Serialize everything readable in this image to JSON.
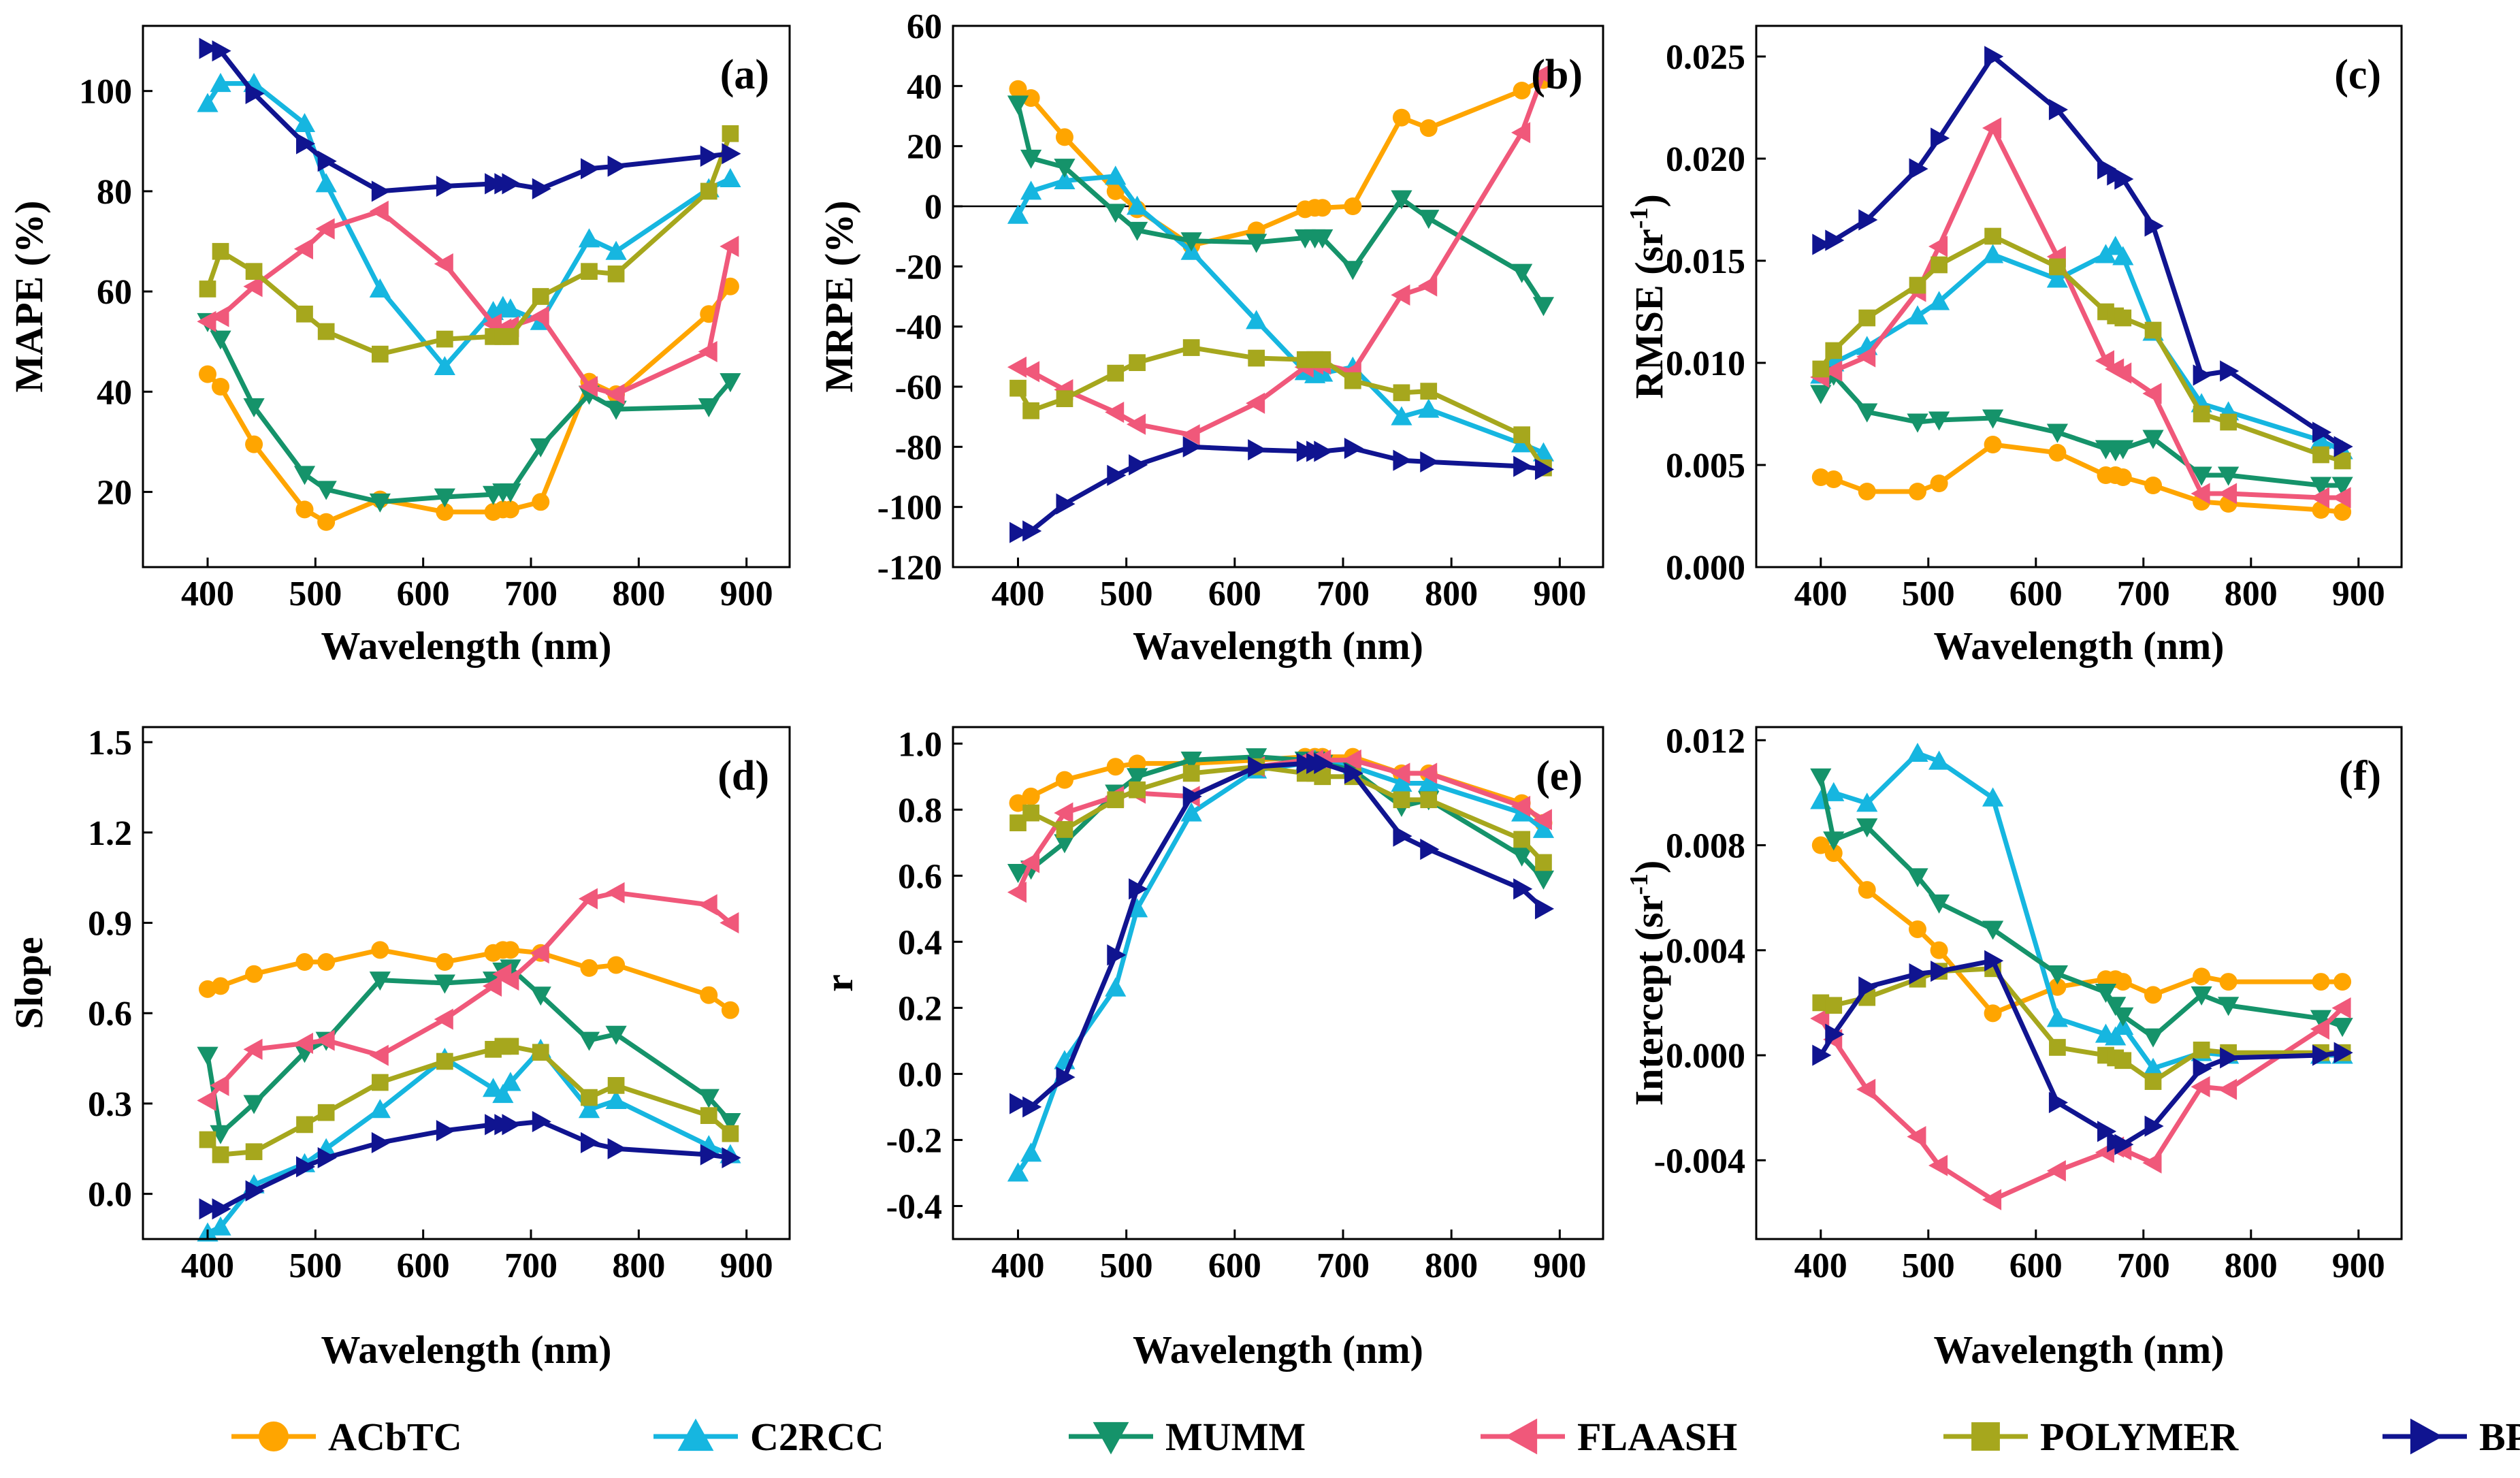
{
  "chart_data": [
    {
      "type": "line",
      "panel_label": "(a)",
      "ylabel": "MAPE (%)",
      "xlabel": "Wavelength (nm)",
      "xlim": [
        340,
        940
      ],
      "ylim": [
        5,
        113
      ],
      "xticks": [
        400,
        500,
        600,
        700,
        800,
        900
      ],
      "yticks": [
        20,
        40,
        60,
        80,
        100
      ],
      "xtick_labels": [
        "400",
        "500",
        "600",
        "700",
        "800",
        "900"
      ],
      "ytick_labels": [
        "20",
        "40",
        "60",
        "80",
        "100"
      ],
      "x": [
        400,
        412,
        443,
        490,
        510,
        560,
        620,
        665,
        674,
        681,
        709,
        754,
        779,
        865,
        885
      ],
      "series": [
        {
          "name": "ACbTC",
          "values": [
            43.5,
            41,
            29.5,
            16.5,
            14,
            18.5,
            16,
            16,
            16.5,
            16.5,
            18,
            42,
            39.5,
            55.5,
            61
          ]
        },
        {
          "name": "C2RCC",
          "values": [
            97.5,
            101.5,
            101.5,
            93.5,
            81.5,
            60.5,
            45,
            56,
            57,
            56.5,
            54,
            70.5,
            68,
            80.5,
            82.5
          ]
        },
        {
          "name": "MUMM",
          "values": [
            54,
            50.5,
            37,
            23.5,
            20.5,
            18,
            19,
            19.5,
            20,
            20,
            29,
            39.5,
            36.5,
            37,
            42
          ]
        },
        {
          "name": "FLAASH",
          "values": [
            54,
            55,
            61,
            68.5,
            72.5,
            76,
            65.5,
            53.5,
            52.5,
            53,
            55,
            41,
            39.5,
            48,
            69
          ]
        },
        {
          "name": "POLYMER",
          "values": [
            60.5,
            68,
            64,
            55.5,
            52,
            47.5,
            50.5,
            51,
            51,
            51,
            59,
            64,
            63.5,
            80,
            91.5
          ]
        },
        {
          "name": "BPAC",
          "values": [
            108.5,
            108,
            99.5,
            89.5,
            86,
            80,
            81,
            81.5,
            81.5,
            81.5,
            80.5,
            84.5,
            85,
            87,
            87.5
          ]
        }
      ]
    },
    {
      "type": "line",
      "panel_label": "(b)",
      "ylabel": "MRPE (%)",
      "xlabel": "Wavelength (nm)",
      "xlim": [
        340,
        940
      ],
      "ylim": [
        -120,
        60
      ],
      "reference_line": 0,
      "xticks": [
        400,
        500,
        600,
        700,
        800,
        900
      ],
      "yticks": [
        -120,
        -100,
        -80,
        -60,
        -40,
        -20,
        0,
        20,
        40,
        60
      ],
      "xtick_labels": [
        "400",
        "500",
        "600",
        "700",
        "800",
        "900"
      ],
      "ytick_labels": [
        "-120",
        "-100",
        "-80",
        "-60",
        "-40",
        "-20",
        "0",
        "20",
        "40",
        "60"
      ],
      "x": [
        400,
        412,
        443,
        490,
        510,
        560,
        620,
        665,
        674,
        681,
        709,
        754,
        779,
        865,
        885
      ],
      "series": [
        {
          "name": "ACbTC",
          "values": [
            39,
            36,
            23,
            5,
            -1,
            -13,
            -8,
            -1,
            -0.5,
            -0.5,
            0,
            29.5,
            26,
            38.5,
            42
          ]
        },
        {
          "name": "C2RCC",
          "values": [
            -3,
            5,
            8.5,
            10,
            0,
            -15,
            -38,
            -55,
            -56,
            -55.5,
            -53.5,
            -70,
            -67.5,
            -79,
            -82
          ]
        },
        {
          "name": "MUMM",
          "values": [
            34,
            16,
            13,
            -2,
            -8,
            -11.5,
            -12,
            -10.5,
            -10.5,
            -10.5,
            -21,
            2.5,
            -4,
            -22,
            -33
          ]
        },
        {
          "name": "FLAASH",
          "values": [
            -53.5,
            -55,
            -61,
            -68.5,
            -72.5,
            -76,
            -65.5,
            -53.5,
            -52.5,
            -52.5,
            -55,
            -29.5,
            -26.5,
            24.5,
            44
          ]
        },
        {
          "name": "POLYMER",
          "values": [
            -60.5,
            -68,
            -64,
            -55.5,
            -52,
            -47,
            -50.5,
            -51,
            -51,
            -51,
            -58,
            -62,
            -61.5,
            -76,
            -87
          ]
        },
        {
          "name": "BPAC",
          "values": [
            -108.5,
            -108,
            -99,
            -89.5,
            -86,
            -80,
            -81,
            -81.5,
            -81.5,
            -81.5,
            -80.5,
            -84.5,
            -85,
            -86.5,
            -87.5
          ]
        }
      ]
    },
    {
      "type": "line",
      "panel_label": "(c)",
      "ylabel_main": "RMSE (sr",
      "ylabel_sup": "-1",
      "ylabel_end": ")",
      "xlabel": "Wavelength (nm)",
      "xlim": [
        340,
        940
      ],
      "ylim": [
        0,
        0.0265
      ],
      "xticks": [
        400,
        500,
        600,
        700,
        800,
        900
      ],
      "yticks": [
        0,
        0.005,
        0.01,
        0.015,
        0.02,
        0.025
      ],
      "xtick_labels": [
        "400",
        "500",
        "600",
        "700",
        "800",
        "900"
      ],
      "ytick_labels": [
        "0.000",
        "0.005",
        "0.010",
        "0.015",
        "0.020",
        "0.025"
      ],
      "x": [
        400,
        412,
        443,
        490,
        510,
        560,
        620,
        665,
        674,
        681,
        709,
        754,
        779,
        865,
        885
      ],
      "series": [
        {
          "name": "ACbTC",
          "values": [
            0.0044,
            0.0043,
            0.0037,
            0.0037,
            0.0041,
            0.006,
            0.0056,
            0.0045,
            0.0045,
            0.0044,
            0.004,
            0.0032,
            0.0031,
            0.0028,
            0.0027
          ]
        },
        {
          "name": "C2RCC",
          "values": [
            0.0094,
            0.01,
            0.0108,
            0.0123,
            0.013,
            0.0153,
            0.0141,
            0.0153,
            0.0157,
            0.0152,
            0.0115,
            0.008,
            0.0076,
            0.0062,
            0.0057
          ]
        },
        {
          "name": "MUMM",
          "values": [
            0.0085,
            0.0094,
            0.0076,
            0.0071,
            0.0072,
            0.0073,
            0.0066,
            0.0058,
            0.0057,
            0.0058,
            0.0063,
            0.0045,
            0.0045,
            0.004,
            0.004
          ]
        },
        {
          "name": "FLAASH",
          "values": [
            0.0093,
            0.0096,
            0.0103,
            0.0135,
            0.0157,
            0.0215,
            0.0152,
            0.0101,
            0.0097,
            0.0095,
            0.0085,
            0.0036,
            0.0036,
            0.0034,
            0.0034
          ]
        },
        {
          "name": "POLYMER",
          "values": [
            0.0097,
            0.0106,
            0.0122,
            0.0138,
            0.0148,
            0.0162,
            0.0147,
            0.0125,
            0.0123,
            0.0122,
            0.0116,
            0.0075,
            0.0071,
            0.0055,
            0.0052
          ]
        },
        {
          "name": "BPAC",
          "values": [
            0.0158,
            0.016,
            0.017,
            0.0195,
            0.021,
            0.025,
            0.0224,
            0.0195,
            0.0192,
            0.019,
            0.0167,
            0.0094,
            0.0096,
            0.0066,
            0.0059
          ]
        }
      ]
    },
    {
      "type": "line",
      "panel_label": "(d)",
      "ylabel": "Slope",
      "xlabel": "Wavelength (nm)",
      "xlim": [
        340,
        940
      ],
      "ylim": [
        -0.15,
        1.55
      ],
      "xticks": [
        400,
        500,
        600,
        700,
        800,
        900
      ],
      "yticks": [
        0,
        0.3,
        0.6,
        0.9,
        1.2,
        1.5
      ],
      "xtick_labels": [
        "400",
        "500",
        "600",
        "700",
        "800",
        "900"
      ],
      "ytick_labels": [
        "0.0",
        "0.3",
        "0.6",
        "0.9",
        "1.2",
        "1.5"
      ],
      "x": [
        400,
        412,
        443,
        490,
        510,
        560,
        620,
        665,
        674,
        681,
        709,
        754,
        779,
        865,
        885
      ],
      "series": [
        {
          "name": "ACbTC",
          "values": [
            0.68,
            0.69,
            0.73,
            0.77,
            0.77,
            0.81,
            0.77,
            0.8,
            0.81,
            0.81,
            0.8,
            0.75,
            0.76,
            0.66,
            0.61
          ]
        },
        {
          "name": "C2RCC",
          "values": [
            -0.13,
            -0.11,
            0.03,
            0.1,
            0.15,
            0.28,
            0.45,
            0.35,
            0.33,
            0.37,
            0.48,
            0.28,
            0.31,
            0.16,
            0.13
          ]
        },
        {
          "name": "MUMM",
          "values": [
            0.46,
            0.2,
            0.3,
            0.47,
            0.51,
            0.71,
            0.7,
            0.71,
            0.74,
            0.75,
            0.66,
            0.51,
            0.53,
            0.32,
            0.24
          ]
        },
        {
          "name": "FLAASH",
          "values": [
            0.31,
            0.36,
            0.48,
            0.5,
            0.51,
            0.46,
            0.58,
            0.69,
            0.73,
            0.71,
            0.8,
            0.98,
            1.0,
            0.96,
            0.9
          ]
        },
        {
          "name": "POLYMER",
          "values": [
            0.18,
            0.13,
            0.14,
            0.23,
            0.27,
            0.37,
            0.44,
            0.48,
            0.49,
            0.49,
            0.47,
            0.32,
            0.36,
            0.26,
            0.2
          ]
        },
        {
          "name": "BPAC",
          "values": [
            -0.05,
            -0.05,
            0.01,
            0.09,
            0.12,
            0.17,
            0.21,
            0.23,
            0.23,
            0.23,
            0.24,
            0.17,
            0.15,
            0.13,
            0.12
          ]
        }
      ]
    },
    {
      "type": "line",
      "panel_label": "(e)",
      "ylabel": "r",
      "xlabel": "Wavelength (nm)",
      "xlim": [
        340,
        940
      ],
      "ylim": [
        -0.5,
        1.05
      ],
      "xticks": [
        400,
        500,
        600,
        700,
        800,
        900
      ],
      "yticks": [
        -0.4,
        -0.2,
        0,
        0.2,
        0.4,
        0.6,
        0.8,
        1.0
      ],
      "xtick_labels": [
        "400",
        "500",
        "600",
        "700",
        "800",
        "900"
      ],
      "ytick_labels": [
        "-0.4",
        "-0.2",
        "0.0",
        "0.2",
        "0.4",
        "0.6",
        "0.8",
        "1.0"
      ],
      "x": [
        400,
        412,
        443,
        490,
        510,
        560,
        620,
        665,
        674,
        681,
        709,
        754,
        779,
        865,
        885
      ],
      "series": [
        {
          "name": "ACbTC",
          "values": [
            0.82,
            0.84,
            0.89,
            0.93,
            0.94,
            0.94,
            0.95,
            0.96,
            0.96,
            0.96,
            0.96,
            0.91,
            0.91,
            0.82,
            0.76
          ]
        },
        {
          "name": "C2RCC",
          "values": [
            -0.3,
            -0.24,
            0.04,
            0.26,
            0.5,
            0.79,
            0.92,
            0.94,
            0.95,
            0.95,
            0.93,
            0.88,
            0.88,
            0.79,
            0.74
          ]
        },
        {
          "name": "MUMM",
          "values": [
            0.61,
            0.62,
            0.7,
            0.85,
            0.9,
            0.95,
            0.96,
            0.95,
            0.95,
            0.94,
            0.92,
            0.81,
            0.83,
            0.66,
            0.59
          ]
        },
        {
          "name": "FLAASH",
          "values": [
            0.55,
            0.64,
            0.79,
            0.84,
            0.85,
            0.84,
            0.93,
            0.95,
            0.95,
            0.95,
            0.95,
            0.91,
            0.91,
            0.81,
            0.77
          ]
        },
        {
          "name": "POLYMER",
          "values": [
            0.76,
            0.79,
            0.74,
            0.83,
            0.86,
            0.91,
            0.93,
            0.91,
            0.91,
            0.9,
            0.9,
            0.83,
            0.83,
            0.71,
            0.64
          ]
        },
        {
          "name": "BPAC",
          "values": [
            -0.09,
            -0.1,
            -0.01,
            0.36,
            0.56,
            0.84,
            0.93,
            0.94,
            0.94,
            0.94,
            0.91,
            0.72,
            0.68,
            0.56,
            0.5
          ]
        }
      ]
    },
    {
      "type": "line",
      "panel_label": "(f)",
      "ylabel_main": "Intercept (sr",
      "ylabel_sup": "-1",
      "ylabel_end": ")",
      "xlabel": "Wavelength (nm)",
      "xlim": [
        340,
        940
      ],
      "ylim": [
        -0.007,
        0.0125
      ],
      "xticks": [
        400,
        500,
        600,
        700,
        800,
        900
      ],
      "yticks": [
        -0.004,
        0,
        0.004,
        0.008,
        0.012
      ],
      "xtick_labels": [
        "400",
        "500",
        "600",
        "700",
        "800",
        "900"
      ],
      "ytick_labels": [
        "-0.004",
        "0.000",
        "0.004",
        "0.008",
        "0.012"
      ],
      "x": [
        400,
        412,
        443,
        490,
        510,
        560,
        620,
        665,
        674,
        681,
        709,
        754,
        779,
        865,
        885
      ],
      "series": [
        {
          "name": "ACbTC",
          "values": [
            0.008,
            0.0077,
            0.0063,
            0.0048,
            0.004,
            0.0016,
            0.0026,
            0.0029,
            0.0029,
            0.0028,
            0.0023,
            0.003,
            0.0028,
            0.0028,
            0.0028
          ]
        },
        {
          "name": "C2RCC",
          "values": [
            0.0097,
            0.01,
            0.0096,
            0.0115,
            0.0112,
            0.0098,
            0.0014,
            0.0008,
            0.0007,
            0.0011,
            -0.0005,
            0.0001,
            0.0,
            0.0,
            0.0
          ]
        },
        {
          "name": "MUMM",
          "values": [
            0.0106,
            0.0082,
            0.0087,
            0.0068,
            0.0058,
            0.0048,
            0.0031,
            0.0024,
            0.0019,
            0.0015,
            0.0007,
            0.0023,
            0.0019,
            0.0014,
            0.0011
          ]
        },
        {
          "name": "FLAASH",
          "values": [
            0.0014,
            0.0006,
            -0.0013,
            -0.0031,
            -0.0042,
            -0.0055,
            -0.0044,
            -0.0037,
            -0.0035,
            -0.0036,
            -0.0041,
            -0.0012,
            -0.0013,
            0.001,
            0.0018
          ]
        },
        {
          "name": "POLYMER",
          "values": [
            0.002,
            0.0019,
            0.0022,
            0.0029,
            0.0032,
            0.0033,
            0.0003,
            0.0,
            -0.0001,
            -0.0002,
            -0.001,
            0.0002,
            0.0001,
            0.0001,
            0.0001
          ]
        },
        {
          "name": "BPAC",
          "values": [
            0.0,
            0.0008,
            0.0026,
            0.0031,
            0.0032,
            0.0036,
            -0.0018,
            -0.0029,
            -0.0033,
            -0.0034,
            -0.0027,
            -0.0005,
            -0.0001,
            0.0,
            0.0001
          ]
        }
      ]
    }
  ],
  "legend": [
    {
      "name": "ACbTC",
      "color": "#FFA500",
      "marker": "circle"
    },
    {
      "name": "C2RCC",
      "color": "#16B6E0",
      "marker": "triangle-up"
    },
    {
      "name": "MUMM",
      "color": "#15936A",
      "marker": "triangle-down"
    },
    {
      "name": "FLAASH",
      "color": "#F0587A",
      "marker": "triangle-left"
    },
    {
      "name": "POLYMER",
      "color": "#A6A71D",
      "marker": "square"
    },
    {
      "name": "BPAC",
      "color": "#101490",
      "marker": "triangle-right"
    }
  ]
}
